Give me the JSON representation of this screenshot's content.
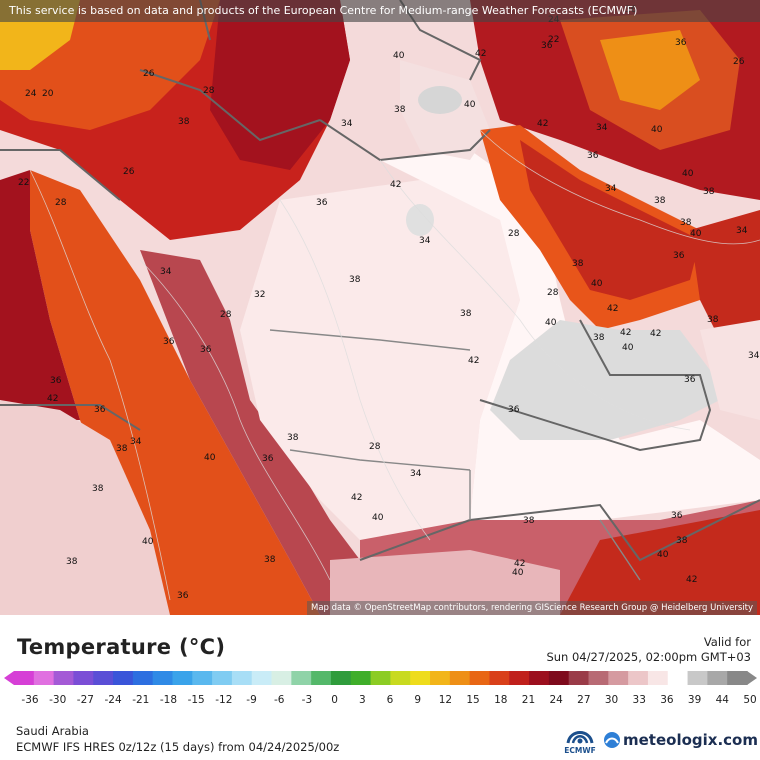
{
  "banner": "This service is based on data and products of the European Centre for Medium-range Weather Forecasts (ECMWF)",
  "attribution": "Map data © OpenStreetMap contributors, rendering GIScience Research Group @ Heidelberg University",
  "title": "Temperature (°C)",
  "valid": {
    "label": "Valid for",
    "datetime": "Sun 04/27/2025, 02:00pm GMT+03"
  },
  "legend": {
    "ticks": [
      "-36",
      "-30",
      "-27",
      "-24",
      "-21",
      "-18",
      "-15",
      "-12",
      "-9",
      "-6",
      "-3",
      "0",
      "3",
      "6",
      "9",
      "12",
      "15",
      "18",
      "21",
      "24",
      "27",
      "30",
      "33",
      "36",
      "39",
      "44",
      "50"
    ],
    "colors": [
      "#d63fd6",
      "#e070e0",
      "#a45ad6",
      "#7b4ed6",
      "#5a4ed6",
      "#3a55d9",
      "#2d6fe0",
      "#2f8ae6",
      "#3aa3ea",
      "#5ab8ee",
      "#80ccf2",
      "#a8def6",
      "#c9ecf7",
      "#d8efe4",
      "#8fd3a8",
      "#54b86a",
      "#2f9c3c",
      "#3fae2a",
      "#8ccc24",
      "#c8da20",
      "#eedc1c",
      "#f2b51a",
      "#ee8f16",
      "#e86614",
      "#d9401a",
      "#c0201c",
      "#9c0f1e",
      "#7e0a1c",
      "#9a3b48",
      "#b86a74",
      "#d59aa0",
      "#ecc6c8",
      "#f8e6e6",
      "#ffffff",
      "#c8c8c8",
      "#a8a8a8",
      "#888888"
    ],
    "arrow_left_color": "#d63fd6",
    "arrow_right_color": "#888888"
  },
  "region": "Saudi Arabia",
  "model": "ECMWF IFS HRES 0z/12z (15 days) from  04/24/2025/00z",
  "logos": {
    "ecmwf": "ECMWF",
    "brand": "meteologix.com"
  },
  "map_labels": [
    "36",
    "24",
    "22",
    "20",
    "26",
    "28",
    "38",
    "40",
    "42",
    "36",
    "24",
    "26",
    "22",
    "28",
    "34",
    "38",
    "40",
    "36",
    "26",
    "34",
    "42",
    "40",
    "36",
    "34",
    "38",
    "40",
    "38",
    "36",
    "42",
    "34",
    "28",
    "36",
    "38",
    "40",
    "34",
    "38",
    "28",
    "40",
    "42",
    "42",
    "42",
    "40",
    "38",
    "42",
    "36",
    "36",
    "38",
    "34",
    "38",
    "40",
    "38",
    "28",
    "32",
    "36",
    "36",
    "34",
    "36",
    "42",
    "36",
    "34",
    "38",
    "40",
    "38",
    "36",
    "28",
    "34",
    "38",
    "42",
    "40",
    "38",
    "36",
    "40",
    "38",
    "36",
    "38",
    "42",
    "40",
    "38",
    "40",
    "42"
  ]
}
